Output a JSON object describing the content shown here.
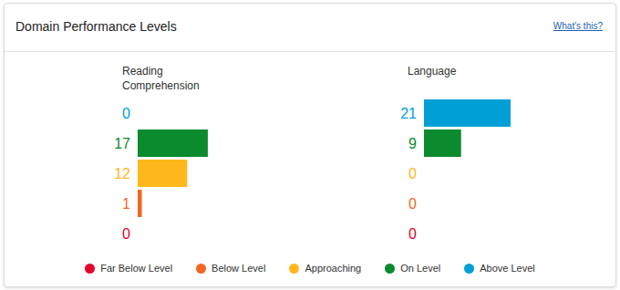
{
  "header": {
    "title": "Domain Performance Levels",
    "link": "What's this?"
  },
  "chart_data": [
    {
      "type": "bar",
      "title": "Reading Comprehension",
      "orientation": "horizontal",
      "categories": [
        "Above Level",
        "On Level",
        "Approaching",
        "Below Level",
        "Far Below Level"
      ],
      "values": [
        0,
        17,
        12,
        1,
        0
      ],
      "colors": [
        "#00a0d6",
        "#0b8a2e",
        "#ffb81c",
        "#f26522",
        "#e4002b"
      ],
      "xlim": [
        0,
        21
      ],
      "data_labels": true,
      "tick_labels": false,
      "legend": "bottom"
    },
    {
      "type": "bar",
      "title": "Language",
      "orientation": "horizontal",
      "categories": [
        "Above Level",
        "On Level",
        "Approaching",
        "Below Level",
        "Far Below Level"
      ],
      "values": [
        21,
        9,
        0,
        0,
        0
      ],
      "colors": [
        "#00a0d6",
        "#0b8a2e",
        "#ffb81c",
        "#f26522",
        "#e4002b"
      ],
      "xlim": [
        0,
        21
      ],
      "data_labels": true,
      "tick_labels": false
    }
  ]
}
